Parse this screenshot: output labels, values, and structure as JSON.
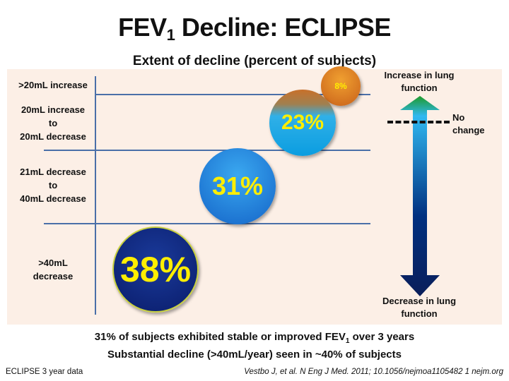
{
  "title": {
    "main": "FEV",
    "sub": "1",
    "rest": " Decline: ECLIPSE"
  },
  "subtitle": "Extent of decline (percent of subjects)",
  "chart_data": {
    "type": "bubble",
    "title": "FEV1 Decline: ECLIPSE",
    "subtitle": "Extent of decline (percent of subjects)",
    "categories": [
      ">20mL increase",
      "20mL increase to 20mL decrease",
      "21mL decrease to 40mL decrease",
      ">40mL decrease"
    ],
    "category_lines": [
      [
        ">20mL increase"
      ],
      [
        "20mL increase",
        "to",
        "20mL decrease"
      ],
      [
        "21mL decrease",
        "to",
        "40mL decrease"
      ],
      [
        ">40mL",
        "decrease"
      ]
    ],
    "values": [
      8,
      23,
      31,
      38
    ],
    "value_labels": [
      "8%",
      "23%",
      "31%",
      "38%"
    ],
    "unit": "percent of subjects"
  },
  "arrow": {
    "top_label": [
      "Increase in lung",
      "function"
    ],
    "bottom_label": [
      "Decrease in lung",
      "function"
    ],
    "no_change_label": [
      "No",
      "change"
    ],
    "colors": {
      "top": "#1e9a2a",
      "upper": "#30b8f0",
      "lower": "#003080",
      "bottom": "#0a1e5a"
    }
  },
  "footer": {
    "line1_pre": "31% of subjects exhibited stable or improved FEV",
    "line1_sub": "1",
    "line1_post": " over 3 years",
    "line2": "Substantial decline (>40mL/year) seen in ~40% of subjects"
  },
  "source_left": "ECLIPSE 3 year data",
  "source_right": "Vestbo J, et al. N Eng J Med. 2011; 10.1056/nejmoa1105482 1 nejm.org"
}
